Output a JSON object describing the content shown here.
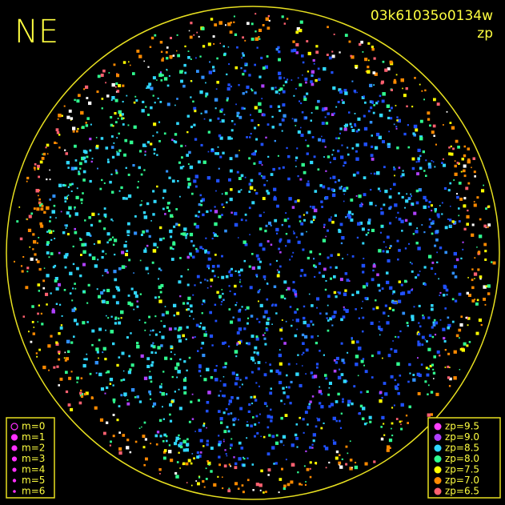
{
  "header": {
    "corner": "NE",
    "image_id": "03k61035o0134w",
    "mode": "zp"
  },
  "magnitude_legend": [
    {
      "label": "m=0",
      "size": 4
    },
    {
      "label": "m=1",
      "size": 3.5
    },
    {
      "label": "m=2",
      "size": 3
    },
    {
      "label": "m=3",
      "size": 2.5
    },
    {
      "label": "m=4",
      "size": 2
    },
    {
      "label": "m=5",
      "size": 1.6
    },
    {
      "label": "m=6",
      "size": 1.2
    }
  ],
  "zp_legend": [
    {
      "label": "zp=9.5",
      "color": "#ff40ff"
    },
    {
      "label": "zp=9.0",
      "color": "#b040ff"
    },
    {
      "label": "zp=8.5",
      "color": "#30d8ff"
    },
    {
      "label": "zp=8.0",
      "color": "#30ff90"
    },
    {
      "label": "zp=7.5",
      "color": "#ffff00"
    },
    {
      "label": "zp=7.0",
      "color": "#ff8a00"
    },
    {
      "label": "zp=6.5",
      "color": "#ff6070"
    }
  ]
}
